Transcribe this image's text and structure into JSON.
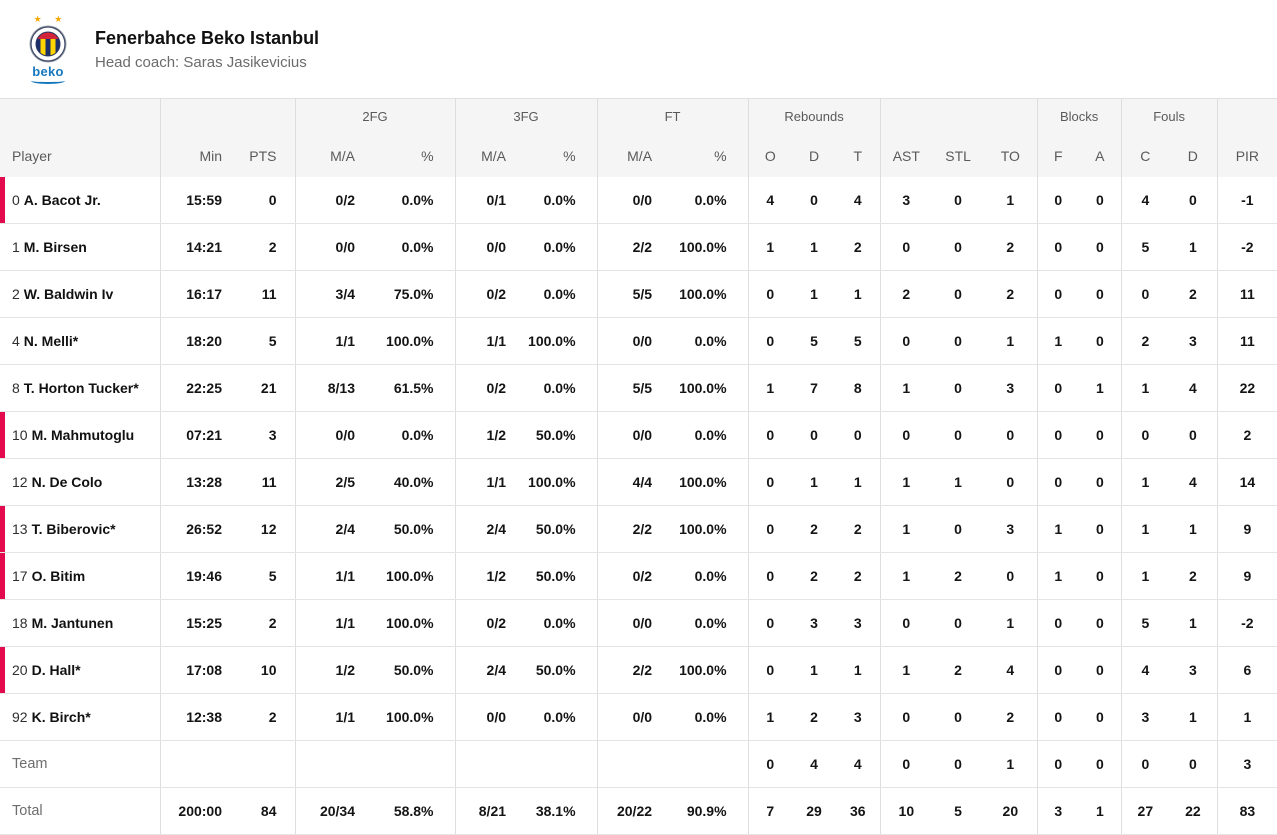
{
  "header": {
    "team_name": "Fenerbahce Beko Istanbul",
    "coach_line": "Head coach: Saras Jasikevicius",
    "logo": {
      "wordmark": "beko",
      "stars": "★ ★"
    }
  },
  "colors": {
    "accent_red": "#e30b4e",
    "header_bg": "#f5f5f5",
    "row_border": "#e4e4e4",
    "text_dark": "#141414",
    "text_gray": "#5a5a5a",
    "beko_blue": "#1878be",
    "star_gold": "#f2a800",
    "emblem_navy": "#1d2f6b",
    "emblem_yellow": "#ffd400",
    "emblem_red": "#d12339"
  },
  "table": {
    "groups": [
      {
        "label": "",
        "span": 1
      },
      {
        "label": "",
        "span": 2
      },
      {
        "label": "2FG",
        "span": 2
      },
      {
        "label": "3FG",
        "span": 2
      },
      {
        "label": "FT",
        "span": 2
      },
      {
        "label": "Rebounds",
        "span": 3
      },
      {
        "label": "",
        "span": 3
      },
      {
        "label": "Blocks",
        "span": 2
      },
      {
        "label": "Fouls",
        "span": 2
      },
      {
        "label": "",
        "span": 1
      }
    ],
    "columns": [
      "Player",
      "Min",
      "PTS",
      "M/A",
      "%",
      "M/A",
      "%",
      "M/A",
      "%",
      "O",
      "D",
      "T",
      "AST",
      "STL",
      "TO",
      "F",
      "A",
      "C",
      "D",
      "PIR"
    ],
    "rows": [
      {
        "num": "0",
        "name": "A. Bacot Jr.",
        "on_court": true,
        "cells": [
          "15:59",
          "0",
          "0/2",
          "0.0%",
          "0/1",
          "0.0%",
          "0/0",
          "0.0%",
          "4",
          "0",
          "4",
          "3",
          "0",
          "1",
          "0",
          "0",
          "4",
          "0",
          "-1"
        ]
      },
      {
        "num": "1",
        "name": "M. Birsen",
        "on_court": false,
        "cells": [
          "14:21",
          "2",
          "0/0",
          "0.0%",
          "0/0",
          "0.0%",
          "2/2",
          "100.0%",
          "1",
          "1",
          "2",
          "0",
          "0",
          "2",
          "0",
          "0",
          "5",
          "1",
          "-2"
        ]
      },
      {
        "num": "2",
        "name": "W. Baldwin Iv",
        "on_court": false,
        "cells": [
          "16:17",
          "11",
          "3/4",
          "75.0%",
          "0/2",
          "0.0%",
          "5/5",
          "100.0%",
          "0",
          "1",
          "1",
          "2",
          "0",
          "2",
          "0",
          "0",
          "0",
          "2",
          "11"
        ]
      },
      {
        "num": "4",
        "name": "N. Melli*",
        "on_court": false,
        "cells": [
          "18:20",
          "5",
          "1/1",
          "100.0%",
          "1/1",
          "100.0%",
          "0/0",
          "0.0%",
          "0",
          "5",
          "5",
          "0",
          "0",
          "1",
          "1",
          "0",
          "2",
          "3",
          "11"
        ]
      },
      {
        "num": "8",
        "name": "T. Horton Tucker*",
        "on_court": false,
        "cells": [
          "22:25",
          "21",
          "8/13",
          "61.5%",
          "0/2",
          "0.0%",
          "5/5",
          "100.0%",
          "1",
          "7",
          "8",
          "1",
          "0",
          "3",
          "0",
          "1",
          "1",
          "4",
          "22"
        ]
      },
      {
        "num": "10",
        "name": "M. Mahmutoglu",
        "on_court": true,
        "cells": [
          "07:21",
          "3",
          "0/0",
          "0.0%",
          "1/2",
          "50.0%",
          "0/0",
          "0.0%",
          "0",
          "0",
          "0",
          "0",
          "0",
          "0",
          "0",
          "0",
          "0",
          "0",
          "2"
        ]
      },
      {
        "num": "12",
        "name": "N. De Colo",
        "on_court": false,
        "cells": [
          "13:28",
          "11",
          "2/5",
          "40.0%",
          "1/1",
          "100.0%",
          "4/4",
          "100.0%",
          "0",
          "1",
          "1",
          "1",
          "1",
          "0",
          "0",
          "0",
          "1",
          "4",
          "14"
        ]
      },
      {
        "num": "13",
        "name": "T. Biberovic*",
        "on_court": true,
        "cells": [
          "26:52",
          "12",
          "2/4",
          "50.0%",
          "2/4",
          "50.0%",
          "2/2",
          "100.0%",
          "0",
          "2",
          "2",
          "1",
          "0",
          "3",
          "1",
          "0",
          "1",
          "1",
          "9"
        ]
      },
      {
        "num": "17",
        "name": "O. Bitim",
        "on_court": true,
        "cells": [
          "19:46",
          "5",
          "1/1",
          "100.0%",
          "1/2",
          "50.0%",
          "0/2",
          "0.0%",
          "0",
          "2",
          "2",
          "1",
          "2",
          "0",
          "1",
          "0",
          "1",
          "2",
          "9"
        ]
      },
      {
        "num": "18",
        "name": "M. Jantunen",
        "on_court": false,
        "cells": [
          "15:25",
          "2",
          "1/1",
          "100.0%",
          "0/2",
          "0.0%",
          "0/0",
          "0.0%",
          "0",
          "3",
          "3",
          "0",
          "0",
          "1",
          "0",
          "0",
          "5",
          "1",
          "-2"
        ]
      },
      {
        "num": "20",
        "name": "D. Hall*",
        "on_court": true,
        "cells": [
          "17:08",
          "10",
          "1/2",
          "50.0%",
          "2/4",
          "50.0%",
          "2/2",
          "100.0%",
          "0",
          "1",
          "1",
          "1",
          "2",
          "4",
          "0",
          "0",
          "4",
          "3",
          "6"
        ]
      },
      {
        "num": "92",
        "name": "K. Birch*",
        "on_court": false,
        "cells": [
          "12:38",
          "2",
          "1/1",
          "100.0%",
          "0/0",
          "0.0%",
          "0/0",
          "0.0%",
          "1",
          "2",
          "3",
          "0",
          "0",
          "2",
          "0",
          "0",
          "3",
          "1",
          "1"
        ]
      }
    ],
    "team_row": {
      "label": "Team",
      "cells": [
        "",
        "",
        "",
        "",
        "",
        "",
        "",
        "",
        "0",
        "4",
        "4",
        "0",
        "0",
        "1",
        "0",
        "0",
        "0",
        "0",
        "3"
      ]
    },
    "total_row": {
      "label": "Total",
      "cells": [
        "200:00",
        "84",
        "20/34",
        "58.8%",
        "8/21",
        "38.1%",
        "20/22",
        "90.9%",
        "7",
        "29",
        "36",
        "10",
        "5",
        "20",
        "3",
        "1",
        "27",
        "22",
        "83"
      ]
    }
  }
}
